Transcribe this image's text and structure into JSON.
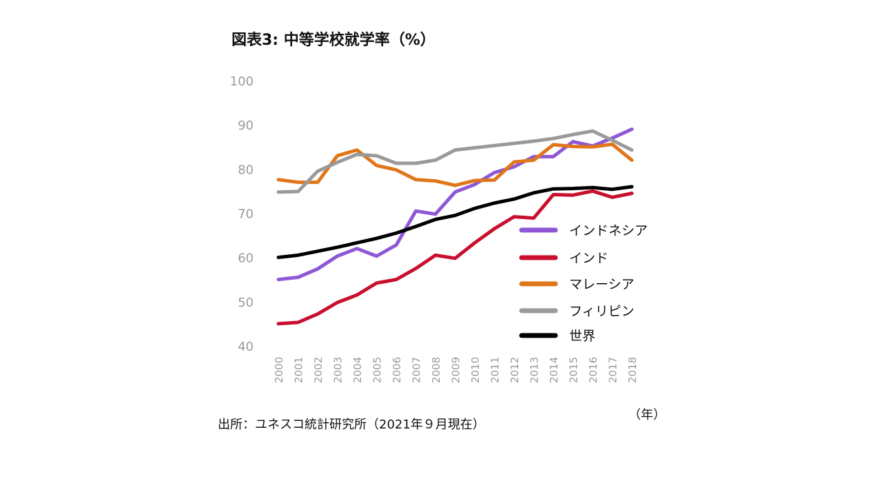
{
  "chart_data": {
    "type": "line",
    "title": "図表3: 中等学校就学率（%）",
    "source": "出所：ユネスコ統計研究所（2021年９月現在）",
    "xlabel": "（年）",
    "ylabel": "",
    "ylim": [
      40,
      100
    ],
    "yticks": [
      "40",
      "50",
      "60",
      "70",
      "80",
      "90",
      "100"
    ],
    "x": [
      "2000",
      "2001",
      "2002",
      "2003",
      "2004",
      "2005",
      "2006",
      "2007",
      "2008",
      "2009",
      "2010",
      "2011",
      "2012",
      "2013",
      "2014",
      "2015",
      "2016",
      "2017",
      "2018"
    ],
    "grid": false,
    "legend_placement": "right",
    "series": [
      {
        "name": "インドネシア",
        "color": "#8e57d6",
        "values": [
          55,
          55.5,
          57.4,
          60.3,
          62,
          60.3,
          62.8,
          70.5,
          69.8,
          74.8,
          76.5,
          79.2,
          80.5,
          82.8,
          82.8,
          86.2,
          85.2,
          87,
          89
        ]
      },
      {
        "name": "インド",
        "color": "#c8102e",
        "values": [
          45,
          45.3,
          47.2,
          49.8,
          51.5,
          54.2,
          55,
          57.5,
          60.5,
          59.8,
          63.3,
          66.5,
          69.2,
          68.9,
          74.2,
          74.1,
          75,
          73.6,
          74.5
        ]
      },
      {
        "name": "マレーシア",
        "color": "#e0761a",
        "values": [
          77.6,
          77,
          77,
          83,
          84.3,
          80.8,
          79.8,
          77.6,
          77.3,
          76.3,
          77.4,
          77.5,
          81.6,
          82,
          85.5,
          85.1,
          85,
          85.6,
          82
        ]
      },
      {
        "name": "フィリピン",
        "color": "#9a9a9a",
        "values": [
          74.8,
          74.9,
          79.5,
          81.5,
          83.3,
          83,
          81.3,
          81.3,
          82,
          84.3,
          84.8,
          85.3,
          85.8,
          86.3,
          86.9,
          87.8,
          88.6,
          86.5,
          84.3
        ]
      },
      {
        "name": "世界",
        "color": "#000000",
        "values": [
          60,
          60.5,
          61.4,
          62.3,
          63.3,
          64.3,
          65.5,
          67,
          68.6,
          69.5,
          71.1,
          72.3,
          73.2,
          74.6,
          75.5,
          75.6,
          75.8,
          75.4,
          76
        ]
      }
    ]
  }
}
